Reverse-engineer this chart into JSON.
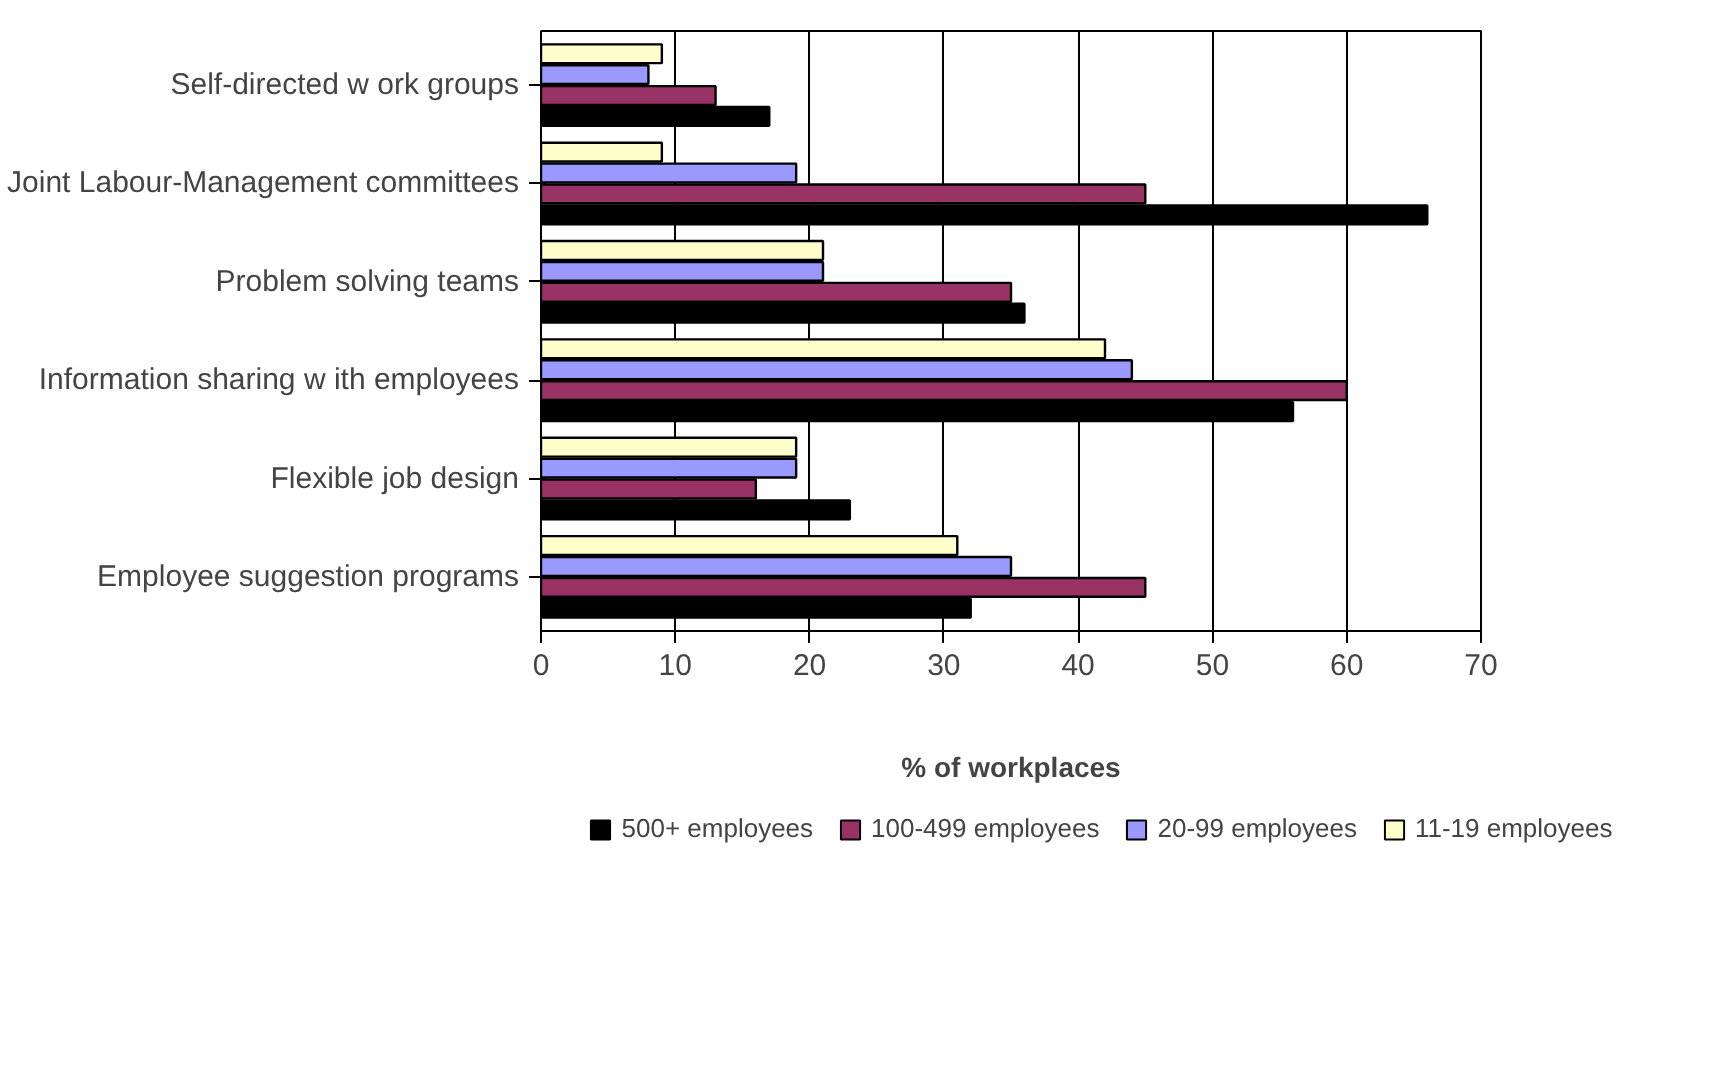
{
  "chart_data": {
    "type": "bar",
    "orientation": "horizontal",
    "categories": [
      "Self-directed w ork groups",
      "Joint Labour-Management committees",
      "Problem solving teams",
      "Information sharing w ith employees",
      "Flexible job design",
      "Employee suggestion programs"
    ],
    "series": [
      {
        "name": "500+ employees",
        "color": "#000000",
        "values": [
          17,
          66,
          36,
          56,
          23,
          32
        ]
      },
      {
        "name": "100-499 employees",
        "color": "#993366",
        "values": [
          13,
          45,
          35,
          60,
          16,
          45
        ]
      },
      {
        "name": "20-99 employees",
        "color": "#9999ff",
        "values": [
          8,
          19,
          21,
          44,
          19,
          35
        ]
      },
      {
        "name": "11-19 employees",
        "color": "#ffffcc",
        "values": [
          9,
          9,
          21,
          42,
          19,
          31
        ]
      }
    ],
    "xlabel": "% of workplaces",
    "xlim": [
      0,
      70
    ],
    "xticks": [
      0,
      10,
      20,
      30,
      40,
      50,
      60,
      70
    ],
    "grid": "x",
    "legend": "bottom"
  }
}
